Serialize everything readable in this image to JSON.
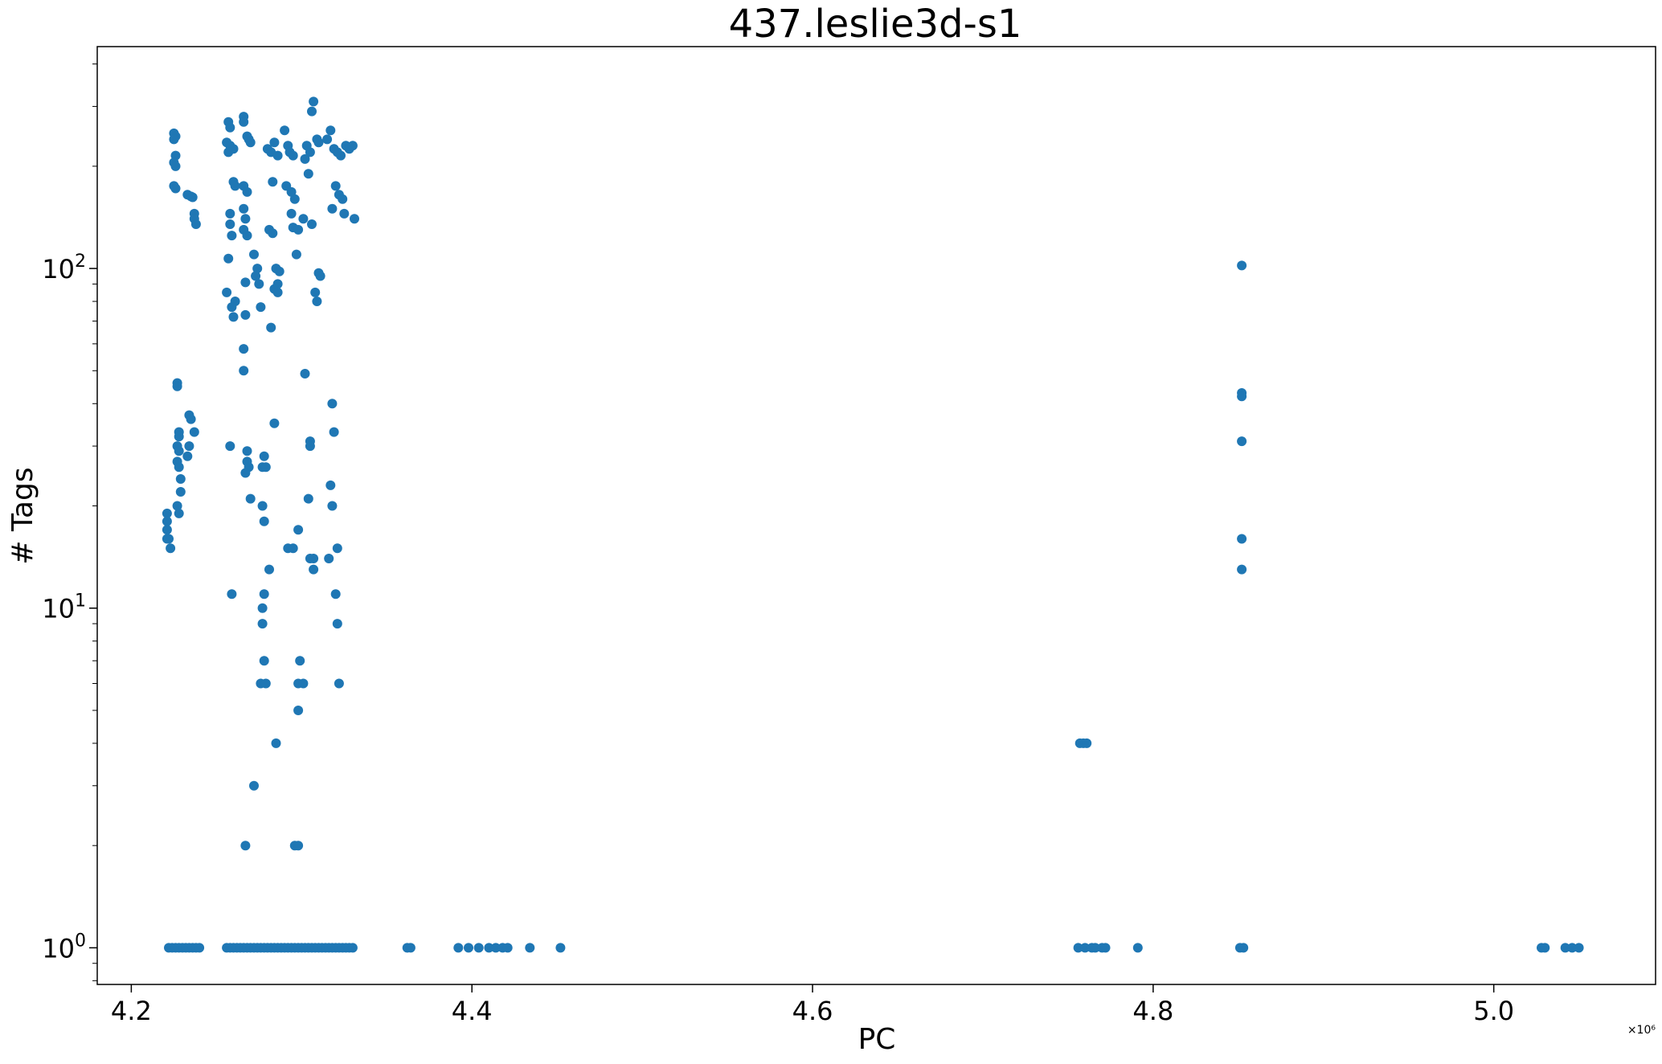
{
  "chart_data": {
    "type": "scatter",
    "title": "437.leslie3d-s1",
    "xlabel": "PC",
    "ylabel": "# Tags",
    "x_offset_label": "×10⁶",
    "x_scale_note": "x values in units of 10^6",
    "yscale": "log",
    "xlim": [
      4.18,
      5.095
    ],
    "ylim": [
      0.78,
      450
    ],
    "x_ticks": [
      4.2,
      4.4,
      4.6,
      4.8,
      5.0
    ],
    "x_tick_labels": [
      "4.2",
      "4.4",
      "4.6",
      "4.8",
      "5.0"
    ],
    "y_major_ticks": [
      1,
      10,
      100
    ],
    "y_major_tick_labels": [
      "10",
      "10",
      "10"
    ],
    "y_major_tick_exponents": [
      "0",
      "1",
      "2"
    ],
    "grid": false,
    "marker_color": "#1f77b4",
    "points": [
      [
        4.222,
        1
      ],
      [
        4.224,
        1
      ],
      [
        4.226,
        1
      ],
      [
        4.228,
        1
      ],
      [
        4.23,
        1
      ],
      [
        4.232,
        1
      ],
      [
        4.234,
        1
      ],
      [
        4.236,
        1
      ],
      [
        4.238,
        1
      ],
      [
        4.24,
        1
      ],
      [
        4.256,
        1
      ],
      [
        4.258,
        1
      ],
      [
        4.26,
        1
      ],
      [
        4.262,
        1
      ],
      [
        4.264,
        1
      ],
      [
        4.266,
        1
      ],
      [
        4.268,
        1
      ],
      [
        4.27,
        1
      ],
      [
        4.272,
        1
      ],
      [
        4.274,
        1
      ],
      [
        4.276,
        1
      ],
      [
        4.278,
        1
      ],
      [
        4.28,
        1
      ],
      [
        4.282,
        1
      ],
      [
        4.284,
        1
      ],
      [
        4.286,
        1
      ],
      [
        4.288,
        1
      ],
      [
        4.29,
        1
      ],
      [
        4.292,
        1
      ],
      [
        4.294,
        1
      ],
      [
        4.296,
        1
      ],
      [
        4.298,
        1
      ],
      [
        4.3,
        1
      ],
      [
        4.302,
        1
      ],
      [
        4.304,
        1
      ],
      [
        4.306,
        1
      ],
      [
        4.308,
        1
      ],
      [
        4.31,
        1
      ],
      [
        4.312,
        1
      ],
      [
        4.314,
        1
      ],
      [
        4.316,
        1
      ],
      [
        4.318,
        1
      ],
      [
        4.32,
        1
      ],
      [
        4.322,
        1
      ],
      [
        4.324,
        1
      ],
      [
        4.326,
        1
      ],
      [
        4.328,
        1
      ],
      [
        4.33,
        1
      ],
      [
        4.362,
        1
      ],
      [
        4.364,
        1
      ],
      [
        4.392,
        1
      ],
      [
        4.398,
        1
      ],
      [
        4.404,
        1
      ],
      [
        4.41,
        1
      ],
      [
        4.414,
        1
      ],
      [
        4.418,
        1
      ],
      [
        4.421,
        1
      ],
      [
        4.434,
        1
      ],
      [
        4.452,
        1
      ],
      [
        4.756,
        1
      ],
      [
        4.76,
        1
      ],
      [
        4.764,
        1
      ],
      [
        4.766,
        1
      ],
      [
        4.77,
        1
      ],
      [
        4.772,
        1
      ],
      [
        4.791,
        1
      ],
      [
        4.851,
        1
      ],
      [
        4.853,
        1
      ],
      [
        5.028,
        1
      ],
      [
        5.03,
        1
      ],
      [
        5.042,
        1
      ],
      [
        5.046,
        1
      ],
      [
        5.05,
        1
      ],
      [
        4.221,
        19
      ],
      [
        4.221,
        18
      ],
      [
        4.221,
        17
      ],
      [
        4.222,
        16
      ],
      [
        4.223,
        15
      ],
      [
        4.221,
        16
      ],
      [
        4.225,
        250
      ],
      [
        4.226,
        245
      ],
      [
        4.225,
        240
      ],
      [
        4.226,
        215
      ],
      [
        4.225,
        205
      ],
      [
        4.226,
        200
      ],
      [
        4.225,
        175
      ],
      [
        4.226,
        172
      ],
      [
        4.227,
        46
      ],
      [
        4.227,
        45
      ],
      [
        4.228,
        33
      ],
      [
        4.228,
        32
      ],
      [
        4.227,
        30
      ],
      [
        4.228,
        29
      ],
      [
        4.227,
        27
      ],
      [
        4.228,
        26
      ],
      [
        4.229,
        24
      ],
      [
        4.229,
        22
      ],
      [
        4.227,
        20
      ],
      [
        4.228,
        19
      ],
      [
        4.233,
        165
      ],
      [
        4.235,
        163
      ],
      [
        4.236,
        162
      ],
      [
        4.237,
        145
      ],
      [
        4.237,
        140
      ],
      [
        4.238,
        135
      ],
      [
        4.234,
        37
      ],
      [
        4.235,
        36
      ],
      [
        4.237,
        33
      ],
      [
        4.234,
        30
      ],
      [
        4.233,
        28
      ],
      [
        4.257,
        270
      ],
      [
        4.258,
        260
      ],
      [
        4.256,
        235
      ],
      [
        4.258,
        230
      ],
      [
        4.26,
        225
      ],
      [
        4.257,
        220
      ],
      [
        4.26,
        180
      ],
      [
        4.261,
        175
      ],
      [
        4.258,
        145
      ],
      [
        4.258,
        135
      ],
      [
        4.259,
        125
      ],
      [
        4.257,
        107
      ],
      [
        4.256,
        85
      ],
      [
        4.261,
        80
      ],
      [
        4.259,
        77
      ],
      [
        4.26,
        72
      ],
      [
        4.258,
        30
      ],
      [
        4.259,
        11
      ],
      [
        4.266,
        280
      ],
      [
        4.266,
        270
      ],
      [
        4.268,
        245
      ],
      [
        4.269,
        240
      ],
      [
        4.27,
        235
      ],
      [
        4.266,
        175
      ],
      [
        4.268,
        168
      ],
      [
        4.266,
        150
      ],
      [
        4.267,
        140
      ],
      [
        4.266,
        130
      ],
      [
        4.268,
        125
      ],
      [
        4.267,
        91
      ],
      [
        4.267,
        73
      ],
      [
        4.266,
        58
      ],
      [
        4.266,
        50
      ],
      [
        4.268,
        29
      ],
      [
        4.268,
        27
      ],
      [
        4.269,
        26
      ],
      [
        4.267,
        25
      ],
      [
        4.27,
        21
      ],
      [
        4.267,
        2
      ],
      [
        4.272,
        110
      ],
      [
        4.274,
        100
      ],
      [
        4.273,
        95
      ],
      [
        4.275,
        90
      ],
      [
        4.276,
        77
      ],
      [
        4.272,
        3
      ],
      [
        4.277,
        26
      ],
      [
        4.278,
        28
      ],
      [
        4.279,
        26
      ],
      [
        4.277,
        20
      ],
      [
        4.278,
        18
      ],
      [
        4.278,
        11
      ],
      [
        4.277,
        10
      ],
      [
        4.277,
        9
      ],
      [
        4.278,
        7
      ],
      [
        4.276,
        6
      ],
      [
        4.279,
        6
      ],
      [
        4.281,
        13
      ],
      [
        4.28,
        225
      ],
      [
        4.282,
        220
      ],
      [
        4.284,
        235
      ],
      [
        4.286,
        215
      ],
      [
        4.283,
        180
      ],
      [
        4.281,
        130
      ],
      [
        4.283,
        127
      ],
      [
        4.285,
        100
      ],
      [
        4.287,
        98
      ],
      [
        4.286,
        90
      ],
      [
        4.284,
        87
      ],
      [
        4.286,
        85
      ],
      [
        4.282,
        67
      ],
      [
        4.284,
        35
      ],
      [
        4.285,
        4
      ],
      [
        4.29,
        255
      ],
      [
        4.292,
        230
      ],
      [
        4.293,
        220
      ],
      [
        4.295,
        215
      ],
      [
        4.291,
        175
      ],
      [
        4.294,
        168
      ],
      [
        4.296,
        160
      ],
      [
        4.294,
        145
      ],
      [
        4.295,
        132
      ],
      [
        4.298,
        130
      ],
      [
        4.297,
        110
      ],
      [
        4.292,
        15
      ],
      [
        4.295,
        15
      ],
      [
        4.298,
        17
      ],
      [
        4.296,
        2
      ],
      [
        4.298,
        2
      ],
      [
        4.299,
        7
      ],
      [
        4.298,
        6
      ],
      [
        4.301,
        6
      ],
      [
        4.298,
        5
      ],
      [
        4.303,
        230
      ],
      [
        4.305,
        220
      ],
      [
        4.302,
        210
      ],
      [
        4.304,
        190
      ],
      [
        4.306,
        135
      ],
      [
        4.301,
        140
      ],
      [
        4.307,
        310
      ],
      [
        4.306,
        290
      ],
      [
        4.309,
        240
      ],
      [
        4.31,
        235
      ],
      [
        4.308,
        85
      ],
      [
        4.309,
        80
      ],
      [
        4.31,
        97
      ],
      [
        4.311,
        95
      ],
      [
        4.302,
        49
      ],
      [
        4.305,
        31
      ],
      [
        4.305,
        30
      ],
      [
        4.304,
        21
      ],
      [
        4.305,
        14
      ],
      [
        4.307,
        13
      ],
      [
        4.307,
        14
      ],
      [
        4.315,
        240
      ],
      [
        4.317,
        255
      ],
      [
        4.319,
        225
      ],
      [
        4.321,
        220
      ],
      [
        4.323,
        215
      ],
      [
        4.32,
        175
      ],
      [
        4.322,
        165
      ],
      [
        4.324,
        160
      ],
      [
        4.318,
        150
      ],
      [
        4.325,
        145
      ],
      [
        4.326,
        230
      ],
      [
        4.328,
        225
      ],
      [
        4.33,
        230
      ],
      [
        4.331,
        140
      ],
      [
        4.318,
        40
      ],
      [
        4.319,
        33
      ],
      [
        4.317,
        23
      ],
      [
        4.318,
        20
      ],
      [
        4.316,
        14
      ],
      [
        4.321,
        15
      ],
      [
        4.32,
        11
      ],
      [
        4.321,
        9
      ],
      [
        4.322,
        6
      ],
      [
        4.852,
        102
      ],
      [
        4.852,
        43
      ],
      [
        4.852,
        42
      ],
      [
        4.852,
        31
      ],
      [
        4.852,
        16
      ],
      [
        4.852,
        13
      ],
      [
        4.757,
        4
      ],
      [
        4.759,
        4
      ],
      [
        4.761,
        4
      ]
    ]
  }
}
